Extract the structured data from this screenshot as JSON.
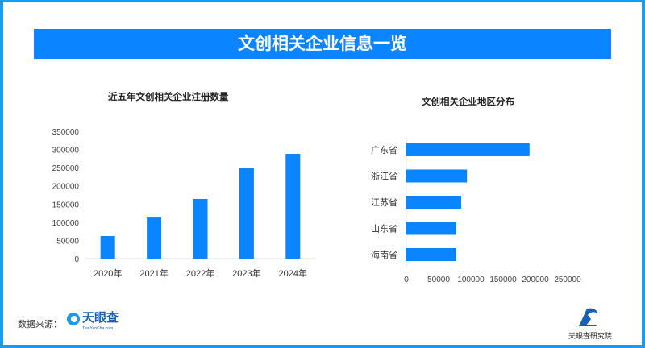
{
  "header": {
    "title": "文创相关企业信息一览"
  },
  "footer": {
    "source_label": "数据来源：",
    "source_logo": "天眼查",
    "source_logo_sub": "TianYanCha.com",
    "institute": "天眼查研究院"
  },
  "colors": {
    "bar": "#0a84ff",
    "frame": "#1a9bf0"
  },
  "chart_data": [
    {
      "type": "bar",
      "title": "近五年文创相关企业注册数量",
      "categories": [
        "2020年",
        "2021年",
        "2022年",
        "2023年",
        "2024年"
      ],
      "values": [
        62000,
        115000,
        164000,
        250000,
        288000
      ],
      "ylim": [
        0,
        350000
      ],
      "yticks": [
        "0",
        "50000",
        "100000",
        "150000",
        "200000",
        "250000",
        "300000",
        "350000"
      ],
      "grid": false
    },
    {
      "type": "bar",
      "orientation": "horizontal",
      "title": "文创相关企业地区分布",
      "categories": [
        "广东省",
        "浙江省",
        "江苏省",
        "山东省",
        "海南省"
      ],
      "values": [
        191000,
        94000,
        85000,
        77500,
        77500
      ],
      "xlim": [
        0,
        250000
      ],
      "xticks": [
        "0",
        "50000",
        "100000",
        "150000",
        "200000",
        "250000"
      ],
      "grid": false
    }
  ]
}
